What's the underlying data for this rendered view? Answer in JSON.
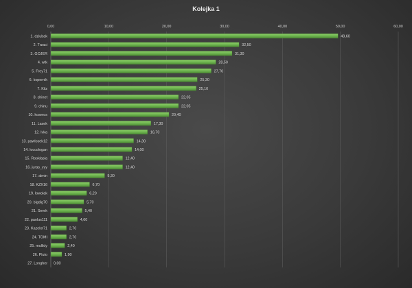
{
  "chart_data": {
    "type": "bar",
    "orientation": "horizontal",
    "title": "Kolejka  1",
    "xlim": [
      0,
      60
    ],
    "x_ticks": [
      "0,00",
      "10,00",
      "20,00",
      "30,00",
      "40,00",
      "50,00",
      "60,00"
    ],
    "x_tick_values": [
      0,
      10,
      20,
      30,
      40,
      50,
      60
    ],
    "grid": true,
    "bar_color": "#6ab04c",
    "categories": [
      "1. dziubak",
      "2. Trzaci",
      "3. GOJER",
      "4. wtk",
      "5. Frey71",
      "6. kopernik",
      "7. Kilz",
      "8. chinet",
      "9. chinu",
      "10. kosmos",
      "11. Lasek",
      "12. Ivka",
      "13. pawlosek12",
      "14. loccologan",
      "15. Rooklasia",
      "16. juras_yyy",
      "17. almin",
      "18. KZX16",
      "19. lowolak",
      "20. bigdig70",
      "21. Serek",
      "22. paolus111",
      "23. Kazelot71",
      "24. TOMI",
      "25. mullidy",
      "26. Pluto",
      "27. Longher"
    ],
    "values": [
      49.6,
      32.5,
      31.3,
      28.5,
      27.7,
      25.3,
      25.1,
      22.05,
      22.05,
      20.4,
      17.3,
      16.7,
      14.3,
      14.0,
      12.4,
      12.4,
      9.3,
      6.7,
      6.2,
      5.7,
      5.4,
      4.6,
      2.7,
      2.7,
      2.4,
      1.9,
      0.0
    ],
    "value_labels": [
      "49,60",
      "32,50",
      "31,30",
      "28,50",
      "27,70",
      "25,30",
      "25,10",
      "22,05",
      "22,05",
      "20,40",
      "17,30",
      "16,70",
      "14,30",
      "14,00",
      "12,40",
      "12,40",
      "9,30",
      "6,70",
      "6,20",
      "5,70",
      "5,40",
      "4,60",
      "2,70",
      "2,70",
      "2,40",
      "1,90",
      "0,00"
    ]
  }
}
